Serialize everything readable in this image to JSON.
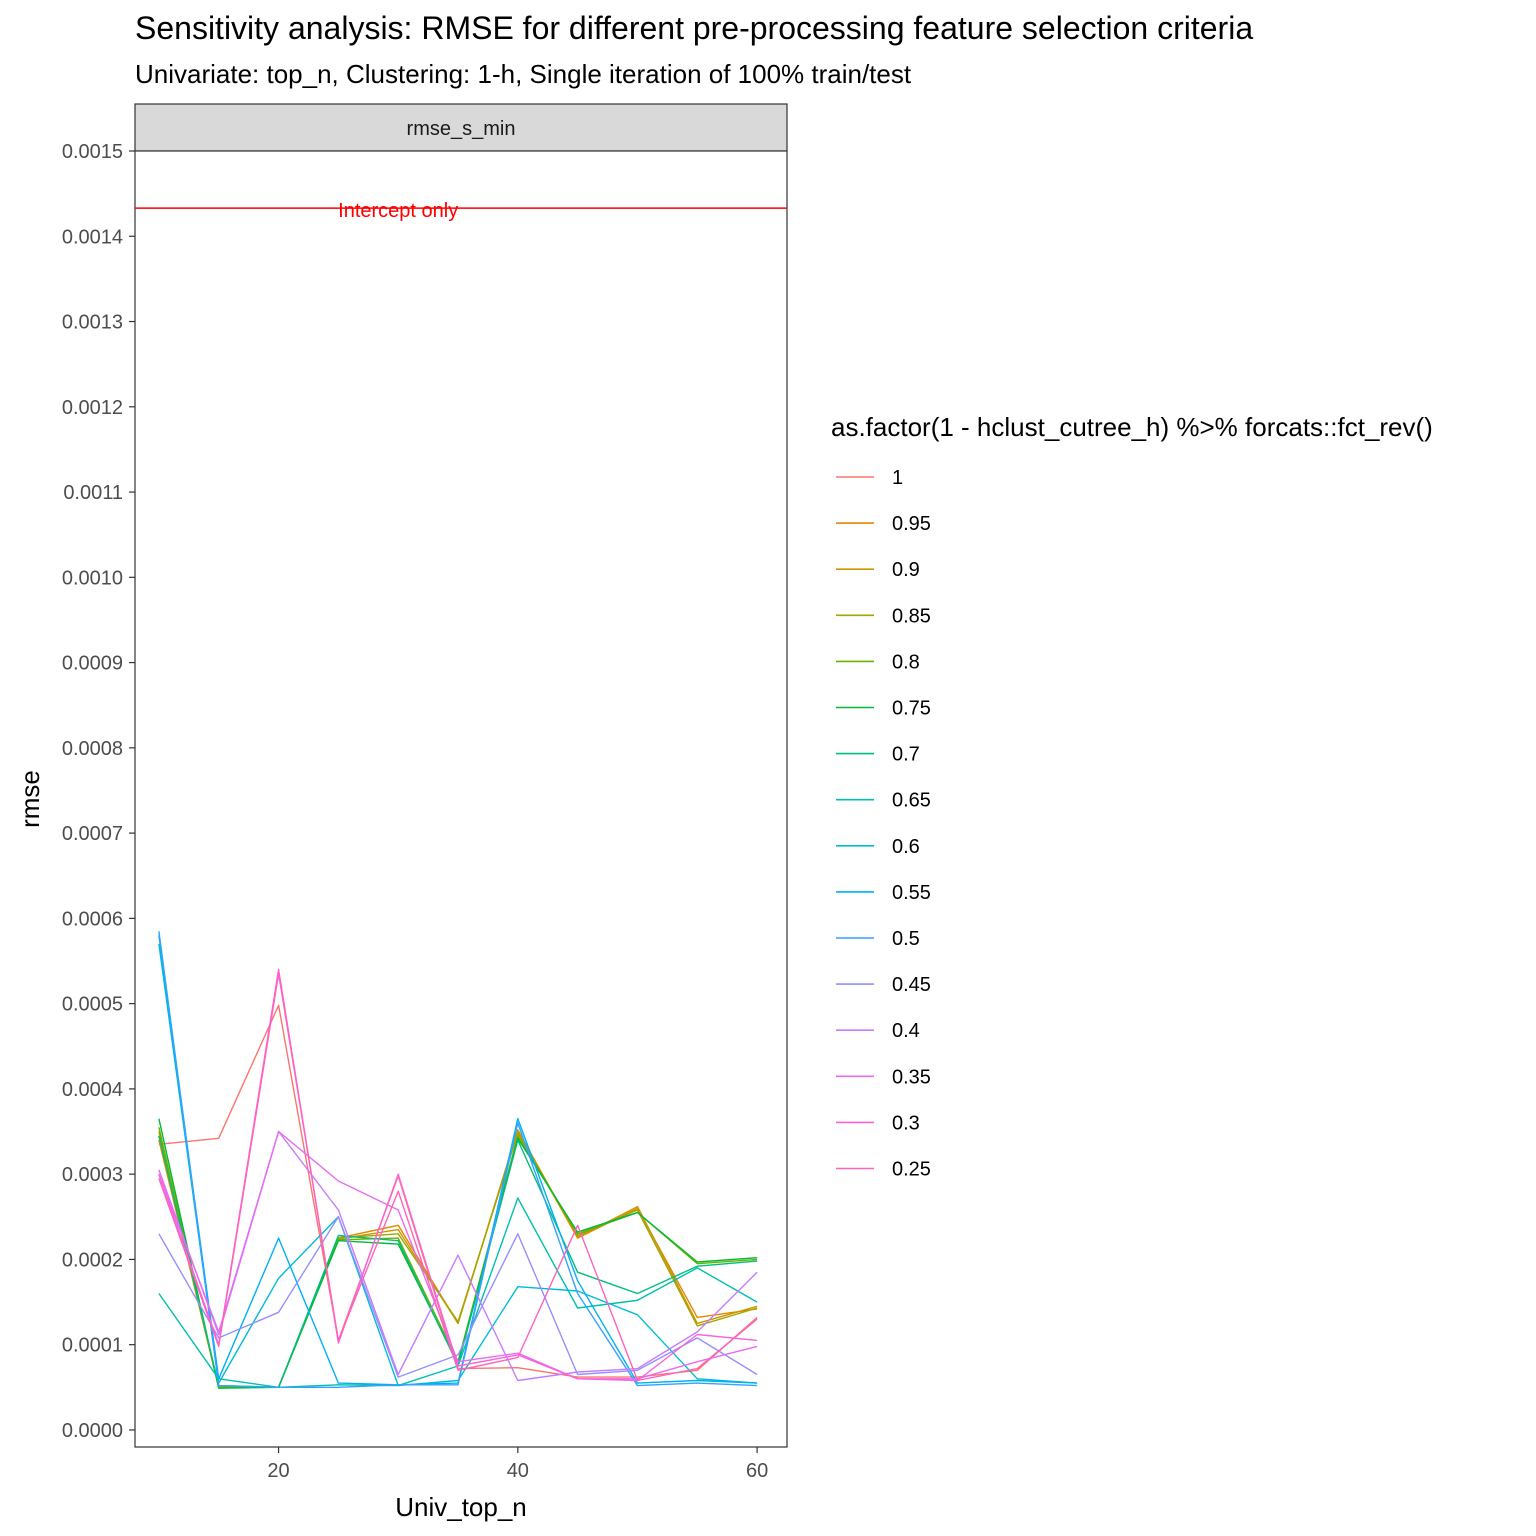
{
  "chart_data": {
    "type": "line",
    "title": "Sensitivity analysis: RMSE for different pre-processing feature selection criteria",
    "subtitle": "Univariate: top_n, Clustering: 1-h, Single iteration of 100% train/test",
    "facet_label": "rmse_s_min",
    "xlabel": "Univ_top_n",
    "ylabel": "rmse",
    "xlim": [
      8,
      62.5
    ],
    "ylim": [
      -2e-05,
      0.0015
    ],
    "x_ticks": [
      20,
      40,
      60
    ],
    "y_ticks": [
      0.0,
      0.0001,
      0.0002,
      0.0003,
      0.0004,
      0.0005,
      0.0006,
      0.0007,
      0.0008,
      0.0009,
      0.001,
      0.0011,
      0.0012,
      0.0013,
      0.0014,
      0.0015
    ],
    "y_tick_labels": [
      "0.0000",
      "0.0001",
      "0.0002",
      "0.0003",
      "0.0004",
      "0.0005",
      "0.0006",
      "0.0007",
      "0.0008",
      "0.0009",
      "0.0010",
      "0.0011",
      "0.0012",
      "0.0013",
      "0.0014",
      "0.0015"
    ],
    "grid": false,
    "legend_title": "as.factor(1 - hclust_cutree_h) %>% forcats::fct_rev()",
    "legend_position": "right",
    "reference_line": {
      "y": 0.001433,
      "label": "Intercept only",
      "label_x": 30,
      "color": "#FF0000"
    },
    "x": [
      10,
      15,
      20,
      25,
      30,
      35,
      40,
      45,
      50,
      55,
      60
    ],
    "series": [
      {
        "name": "1",
        "color": "#F8766D",
        "values": [
          0.000335,
          0.000342,
          0.000498,
          0.000105,
          0.000298,
          7.2e-05,
          7.3e-05,
          6.2e-05,
          6.2e-05,
          7e-05,
          0.000132
        ]
      },
      {
        "name": "0.95",
        "color": "#E58700",
        "values": [
          0.00034,
          5e-05,
          5e-05,
          0.000225,
          0.00024,
          0.000125,
          0.00035,
          0.000225,
          0.00026,
          0.000132,
          0.000142
        ]
      },
      {
        "name": "0.9",
        "color": "#C99800",
        "values": [
          0.000345,
          5e-05,
          5e-05,
          0.000224,
          0.000235,
          0.000125,
          0.000352,
          0.000226,
          0.000262,
          0.000125,
          0.000145
        ]
      },
      {
        "name": "0.85",
        "color": "#A3A500",
        "values": [
          0.00035,
          5e-05,
          5e-05,
          0.000225,
          0.00023,
          0.000127,
          0.000348,
          0.000228,
          0.000258,
          0.000122,
          0.000143
        ]
      },
      {
        "name": "0.8",
        "color": "#6BB100",
        "values": [
          0.000355,
          5e-05,
          5e-05,
          0.000223,
          0.000225,
          8e-05,
          0.000345,
          0.00023,
          0.000255,
          0.000195,
          0.0002
        ]
      },
      {
        "name": "0.75",
        "color": "#00BA38",
        "values": [
          0.000365,
          4.9e-05,
          5e-05,
          0.000222,
          0.000218,
          7.8e-05,
          0.000342,
          0.000232,
          0.000255,
          0.000197,
          0.000202
        ]
      },
      {
        "name": "0.7",
        "color": "#00BF7D",
        "values": [
          0.000345,
          5.2e-05,
          5e-05,
          0.000228,
          0.000222,
          7.6e-05,
          0.00034,
          0.000185,
          0.00016,
          0.000192,
          0.000198
        ]
      },
      {
        "name": "0.65",
        "color": "#00C0AF",
        "values": [
          0.00016,
          6e-05,
          5e-05,
          5.3e-05,
          5.2e-05,
          7.5e-05,
          0.000272,
          0.000143,
          0.000152,
          0.00019,
          0.00015
        ]
      },
      {
        "name": "0.6",
        "color": "#00BCD8",
        "values": [
          0.00057,
          5.5e-05,
          0.000178,
          0.00025,
          5.2e-05,
          5.8e-05,
          0.000168,
          0.000163,
          0.000135,
          6e-05,
          5.5e-05
        ]
      },
      {
        "name": "0.55",
        "color": "#00B0F6",
        "values": [
          0.00058,
          6e-05,
          0.000225,
          5.5e-05,
          5.3e-05,
          5.5e-05,
          0.000365,
          0.000175,
          5.5e-05,
          5.8e-05,
          5.5e-05
        ]
      },
      {
        "name": "0.5",
        "color": "#35A2FF",
        "values": [
          0.000585,
          5.2e-05,
          5e-05,
          5e-05,
          5.3e-05,
          5.3e-05,
          0.00036,
          0.00016,
          5.2e-05,
          5.5e-05,
          5.2e-05
        ]
      },
      {
        "name": "0.45",
        "color": "#9590FF",
        "values": [
          0.00023,
          0.000108,
          0.000138,
          0.00025,
          6.2e-05,
          8.8e-05,
          0.00023,
          6.5e-05,
          7e-05,
          0.000108,
          6.5e-05
        ]
      },
      {
        "name": "0.4",
        "color": "#C77CFF",
        "values": [
          0.0003,
          0.000115,
          0.00035,
          0.000258,
          6.5e-05,
          0.000205,
          5.8e-05,
          6.8e-05,
          7.2e-05,
          0.000115,
          0.000185
        ]
      },
      {
        "name": "0.35",
        "color": "#E76BF3",
        "values": [
          0.000305,
          0.000112,
          0.00035,
          0.000292,
          0.000258,
          8e-05,
          9e-05,
          6e-05,
          6e-05,
          8e-05,
          9.8e-05
        ]
      },
      {
        "name": "0.3",
        "color": "#FA62DB",
        "values": [
          0.0003,
          0.0001,
          0.00054,
          0.000102,
          0.0003,
          7.5e-05,
          8.8e-05,
          6e-05,
          5.8e-05,
          0.000112,
          0.000105
        ]
      },
      {
        "name": "0.25",
        "color": "#FF62BC",
        "values": [
          0.000295,
          9.8e-05,
          0.000535,
          0.000105,
          0.00028,
          7e-05,
          8.5e-05,
          0.00024,
          5.8e-05,
          7.2e-05,
          0.00013
        ]
      }
    ]
  }
}
